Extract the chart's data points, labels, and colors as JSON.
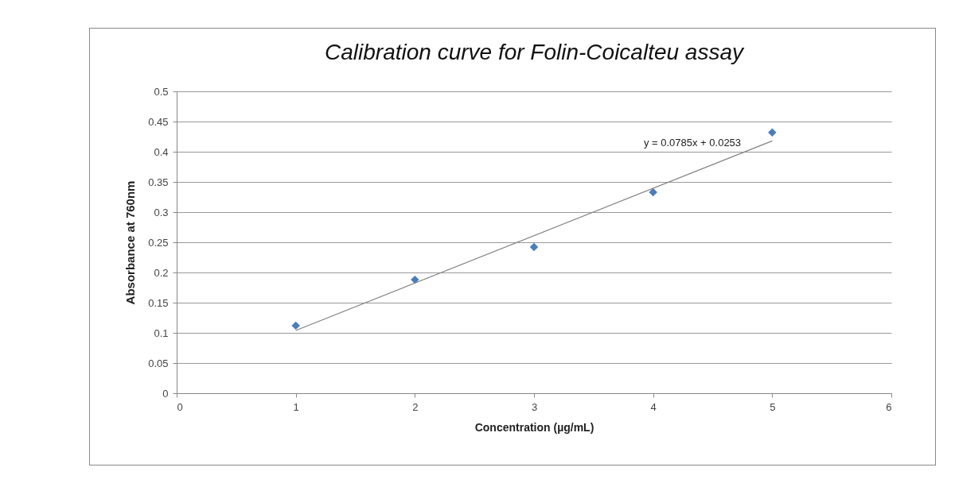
{
  "chart_data": {
    "type": "scatter",
    "title": "Calibration curve for Folin-Coicalteu assay",
    "xlabel": "Concentration (µg/mL)",
    "ylabel": "Absorbance  at 760nm",
    "xlim": [
      0,
      6
    ],
    "xticks": [
      0,
      1,
      2,
      3,
      4,
      5,
      6
    ],
    "ylim": [
      0,
      0.5
    ],
    "yticks": [
      0,
      0.05,
      0.1,
      0.15,
      0.2,
      0.25,
      0.3,
      0.35,
      0.4,
      0.45,
      0.5
    ],
    "grid": "y",
    "series": [
      {
        "type": "scatter",
        "marker": "diamond",
        "color": "#4a7ebb",
        "x": [
          1,
          2,
          3,
          4,
          5
        ],
        "values": [
          0.112,
          0.188,
          0.242,
          0.333,
          0.432
        ]
      },
      {
        "type": "line",
        "color": "#808080",
        "x": [
          1,
          5
        ],
        "values": [
          0.104,
          0.418
        ]
      }
    ],
    "annotations": [
      "y = 0.0785x + 0.0253"
    ]
  }
}
